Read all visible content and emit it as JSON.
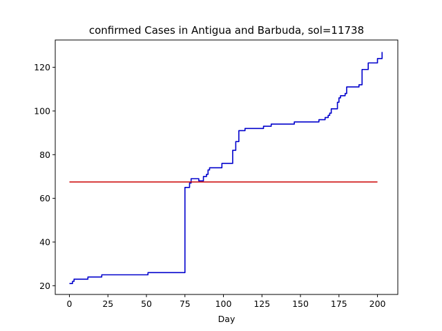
{
  "chart_data": {
    "type": "line",
    "title": "confirmed Cases in Antigua and Barbuda, sol=11738",
    "xlabel": "Day",
    "ylabel": "",
    "xlim": [
      -9.2,
      213.2
    ],
    "ylim": [
      16,
      132.5
    ],
    "xticks": [
      0,
      25,
      50,
      75,
      100,
      125,
      150,
      175,
      200
    ],
    "yticks": [
      20,
      40,
      60,
      80,
      100,
      120
    ],
    "grid": false,
    "series": [
      {
        "color": "#0000cc",
        "style": "step",
        "x": [
          0,
          1,
          2,
          3,
          10,
          11,
          12,
          19,
          20,
          21,
          49,
          50,
          51,
          52,
          74,
          75,
          76,
          77,
          78,
          79,
          83,
          84,
          85,
          86,
          87,
          88,
          89,
          90,
          91,
          92,
          93,
          98,
          99,
          104,
          105,
          106,
          107,
          108,
          109,
          110,
          111,
          113,
          114,
          115,
          125,
          126,
          129,
          130,
          131,
          145,
          146,
          160,
          161,
          162,
          164,
          165,
          166,
          167,
          168,
          169,
          170,
          172,
          173,
          174,
          175,
          176,
          178,
          179,
          180,
          185,
          186,
          187,
          188,
          189,
          190,
          192,
          193,
          194,
          195,
          200,
          201,
          202,
          203
        ],
        "y": [
          21,
          21,
          22,
          23,
          23,
          23,
          24,
          24,
          24,
          25,
          25,
          25,
          26,
          26,
          26,
          65,
          65,
          65,
          67,
          69,
          69,
          68,
          68,
          68,
          70,
          70,
          71,
          73,
          74,
          74,
          74,
          74,
          76,
          76,
          76,
          82,
          82,
          86,
          86,
          91,
          91,
          91,
          92,
          92,
          92,
          93,
          93,
          93,
          94,
          94,
          95,
          95,
          95,
          96,
          96,
          96,
          97,
          97,
          98,
          99,
          101,
          101,
          101,
          104,
          106,
          107,
          107,
          108,
          111,
          111,
          111,
          111,
          112,
          112,
          119,
          119,
          119,
          122,
          122,
          124,
          124,
          124,
          127
        ]
      },
      {
        "color": "#cc0000",
        "style": "line",
        "x": [
          0,
          200
        ],
        "y": [
          67.5,
          67.5
        ]
      }
    ]
  }
}
